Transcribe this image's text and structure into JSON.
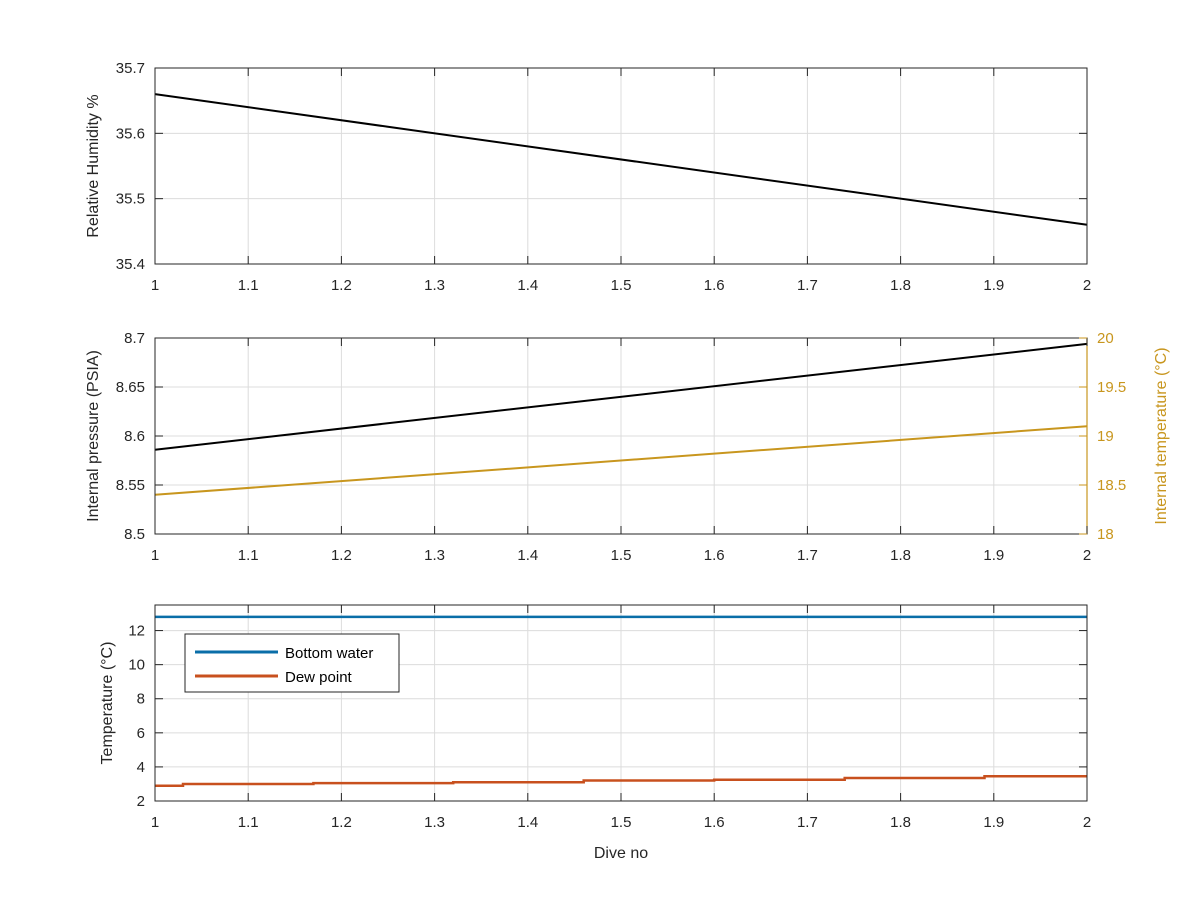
{
  "colors": {
    "black": "#000000",
    "temperature_axis": "#c8961e",
    "bottom_water": "#0a6ea8",
    "dew_point": "#c8501e",
    "grid": "#dcdcdc",
    "axis": "#262626"
  },
  "chart_data": [
    {
      "type": "line",
      "xlabel": "",
      "ylabel": "Relative Humidity %",
      "xlim": [
        1,
        2
      ],
      "ylim": [
        35.4,
        35.7
      ],
      "xticks": [
        "1",
        "1.1",
        "1.2",
        "1.3",
        "1.4",
        "1.5",
        "1.6",
        "1.7",
        "1.8",
        "1.9",
        "2"
      ],
      "yticks": [
        "35.4",
        "35.5",
        "35.6",
        "35.7"
      ],
      "grid": true,
      "series": [
        {
          "x": [
            1,
            2
          ],
          "y": [
            35.66,
            35.46
          ],
          "color": "#000000"
        }
      ]
    },
    {
      "type": "line",
      "xlabel": "",
      "ylabel": "Internal pressure (PSIA)",
      "y2label": "Internal temperature (°C)",
      "xlim": [
        1,
        2
      ],
      "ylim": [
        8.5,
        8.7
      ],
      "y2lim": [
        18,
        20
      ],
      "xticks": [
        "1",
        "1.1",
        "1.2",
        "1.3",
        "1.4",
        "1.5",
        "1.6",
        "1.7",
        "1.8",
        "1.9",
        "2"
      ],
      "yticks": [
        "8.5",
        "8.55",
        "8.6",
        "8.65",
        "8.7"
      ],
      "y2ticks": [
        "18",
        "18.5",
        "19",
        "19.5",
        "20"
      ],
      "grid": true,
      "series": [
        {
          "axis": "left",
          "x": [
            1,
            2
          ],
          "y": [
            8.586,
            8.694
          ],
          "color": "#000000"
        },
        {
          "axis": "right",
          "x": [
            1,
            2
          ],
          "y": [
            18.4,
            19.1
          ],
          "color": "#c8961e"
        }
      ]
    },
    {
      "type": "line",
      "xlabel": "Dive no",
      "ylabel": "Temperature (°C)",
      "xlim": [
        1,
        2
      ],
      "ylim": [
        2,
        13.5
      ],
      "xticks": [
        "1",
        "1.1",
        "1.2",
        "1.3",
        "1.4",
        "1.5",
        "1.6",
        "1.7",
        "1.8",
        "1.9",
        "2"
      ],
      "yticks": [
        "2",
        "4",
        "6",
        "8",
        "10",
        "12"
      ],
      "grid": true,
      "legend_position": "top-left",
      "series": [
        {
          "name": "Bottom water",
          "x": [
            1,
            2
          ],
          "y": [
            12.8,
            12.8
          ],
          "color": "#0a6ea8"
        },
        {
          "name": "Dew point",
          "x": [
            1,
            1.03,
            1.03,
            1.17,
            1.17,
            1.32,
            1.32,
            1.46,
            1.46,
            1.6,
            1.6,
            1.74,
            1.74,
            1.89,
            1.89,
            2
          ],
          "y": [
            2.9,
            2.9,
            3.0,
            3.0,
            3.05,
            3.05,
            3.1,
            3.1,
            3.2,
            3.2,
            3.25,
            3.25,
            3.35,
            3.35,
            3.45,
            3.45
          ],
          "color": "#c8501e"
        }
      ]
    }
  ]
}
